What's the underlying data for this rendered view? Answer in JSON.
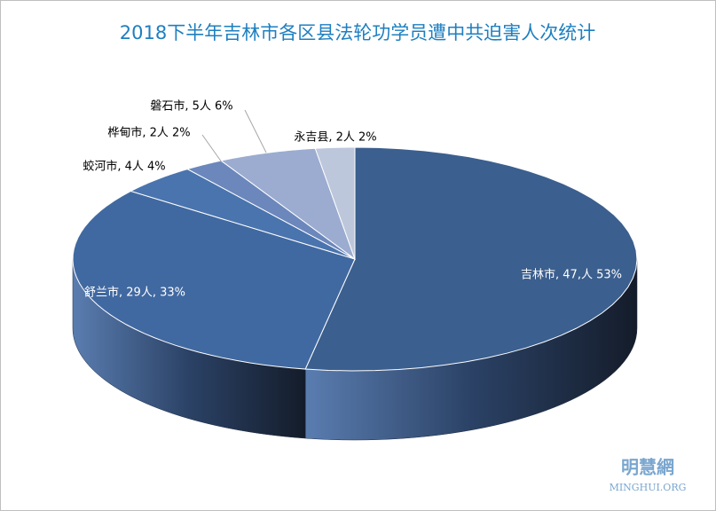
{
  "chart_data": {
    "type": "pie",
    "title": "2018下半年吉林市各区县法轮功学员遭中共迫害人次统计",
    "values": [
      47,
      29,
      4,
      2,
      5,
      2
    ],
    "value_labels": [
      "吉林市, 47,人 53%",
      "舒兰市, 29人, 33%",
      "蛟河市, 4人 4%",
      "桦甸市, 2人 2%",
      "磐石市, 5人 6%",
      "永吉县, 2人 2%"
    ],
    "colors": [
      "#3b5f8e",
      "#4169a1",
      "#4a74ae",
      "#6b87bc",
      "#9bacd0",
      "#bdc7dc"
    ]
  },
  "watermark": {
    "logo": "明慧網",
    "site": "MINGHUI.ORG"
  }
}
